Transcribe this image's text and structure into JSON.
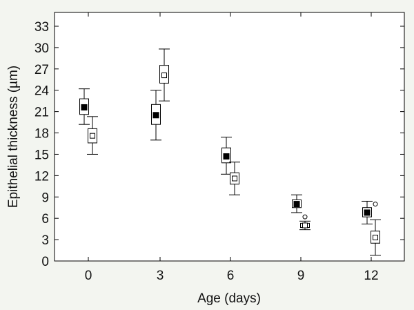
{
  "chart_data": {
    "type": "box",
    "xlabel": "Age (days)",
    "ylabel": "Epithelial thickness (µm)",
    "ylim": [
      0,
      35
    ],
    "yticks": [
      0,
      3,
      6,
      9,
      12,
      15,
      18,
      21,
      24,
      27,
      30,
      33
    ],
    "xtick_labels": [
      "0",
      "3",
      "6",
      "9",
      "12"
    ],
    "grid": false,
    "legend": "none",
    "series": [
      {
        "marker": "filled-square",
        "color": "#000000",
        "boxes": [
          {
            "x": 0,
            "median": 21.6,
            "q1": 20.6,
            "q3": 22.8,
            "whisker_low": 19.2,
            "whisker_high": 24.2,
            "outliers": []
          },
          {
            "x": 3,
            "median": 20.5,
            "q1": 19.2,
            "q3": 22.0,
            "whisker_low": 17.0,
            "whisker_high": 24.0,
            "outliers": []
          },
          {
            "x": 6,
            "median": 14.7,
            "q1": 13.8,
            "q3": 15.9,
            "whisker_low": 12.2,
            "whisker_high": 17.4,
            "outliers": []
          },
          {
            "x": 9,
            "median": 8.0,
            "q1": 7.5,
            "q3": 8.6,
            "whisker_low": 6.8,
            "whisker_high": 9.3,
            "outliers": []
          },
          {
            "x": 12,
            "median": 6.8,
            "q1": 6.2,
            "q3": 7.5,
            "whisker_low": 5.2,
            "whisker_high": 8.4,
            "outliers": []
          }
        ]
      },
      {
        "marker": "open-square",
        "color": "#000000",
        "boxes": [
          {
            "x": 0,
            "median": 17.6,
            "q1": 16.6,
            "q3": 18.6,
            "whisker_low": 15.0,
            "whisker_high": 20.3,
            "outliers": []
          },
          {
            "x": 3,
            "median": 26.1,
            "q1": 25.0,
            "q3": 27.5,
            "whisker_low": 22.5,
            "whisker_high": 29.8,
            "outliers": []
          },
          {
            "x": 6,
            "median": 11.6,
            "q1": 10.8,
            "q3": 12.4,
            "whisker_low": 9.3,
            "whisker_high": 13.9,
            "outliers": []
          },
          {
            "x": 9,
            "median": 5.0,
            "q1": 4.7,
            "q3": 5.3,
            "whisker_low": 4.4,
            "whisker_high": 5.6,
            "outliers": [
              6.2
            ]
          },
          {
            "x": 12,
            "median": 3.3,
            "q1": 2.5,
            "q3": 4.2,
            "whisker_low": 0.8,
            "whisker_high": 5.8,
            "outliers": [
              8.0
            ]
          }
        ]
      }
    ]
  }
}
